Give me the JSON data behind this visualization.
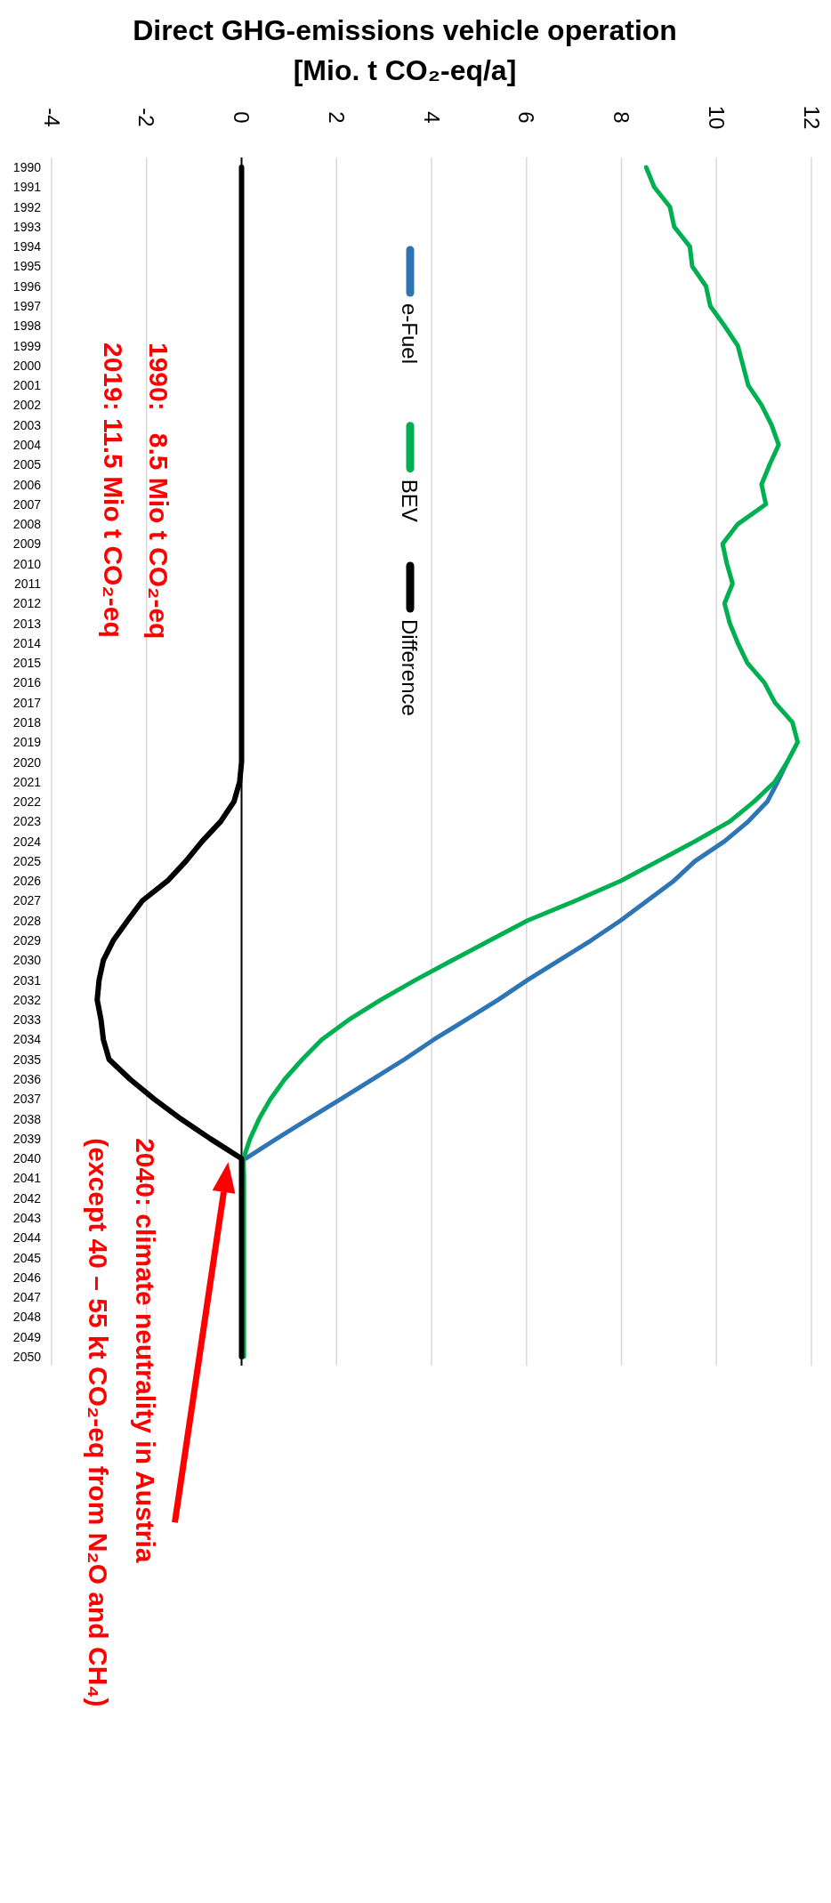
{
  "chart_data": {
    "type": "line",
    "orientation": "horizontal",
    "title": "Direct GHG-emissions vehicle operation\n[Mio. t CO₂-eq/a]",
    "categories": [
      "1990",
      "1991",
      "1992",
      "1993",
      "1994",
      "1995",
      "1996",
      "1997",
      "1998",
      "1999",
      "2000",
      "2001",
      "2002",
      "2003",
      "2004",
      "2005",
      "2006",
      "2007",
      "2008",
      "2009",
      "2010",
      "2011",
      "2012",
      "2013",
      "2014",
      "2015",
      "2016",
      "2017",
      "2018",
      "2019",
      "2020",
      "2021",
      "2022",
      "2023",
      "2024",
      "2025",
      "2026",
      "2027",
      "2028",
      "2029",
      "2030",
      "2031",
      "2032",
      "2033",
      "2034",
      "2035",
      "2036",
      "2037",
      "2038",
      "2039",
      "2040",
      "2041",
      "2042",
      "2043",
      "2044",
      "2045",
      "2046",
      "2047",
      "2048",
      "2049",
      "2050"
    ],
    "series": [
      {
        "name": "e-Fuel",
        "color": "#2e75b6",
        "values": [
          null,
          null,
          null,
          null,
          null,
          null,
          null,
          null,
          null,
          null,
          null,
          null,
          null,
          null,
          null,
          null,
          null,
          null,
          null,
          null,
          null,
          null,
          null,
          null,
          null,
          null,
          null,
          null,
          null,
          null,
          11.49,
          11.29,
          11.07,
          10.67,
          10.17,
          9.55,
          9.1,
          8.54,
          7.98,
          7.36,
          6.69,
          6.02,
          5.4,
          4.73,
          4.05,
          3.43,
          2.76,
          2.09,
          1.41,
          0.74,
          0.09,
          null,
          null,
          null,
          null,
          null,
          null,
          null,
          null,
          null,
          null
        ]
      },
      {
        "name": "BEV",
        "color": "#00b050",
        "values": [
          8.52,
          8.69,
          9.02,
          9.11,
          9.44,
          9.49,
          9.78,
          9.87,
          10.17,
          10.45,
          10.56,
          10.67,
          10.95,
          11.16,
          11.31,
          11.12,
          10.95,
          11.04,
          10.45,
          10.13,
          10.22,
          10.34,
          10.17,
          10.28,
          10.45,
          10.65,
          11.01,
          11.23,
          11.6,
          11.71,
          11.49,
          11.23,
          10.79,
          10.28,
          9.55,
          8.77,
          7.98,
          7.03,
          6.02,
          5.23,
          4.44,
          3.66,
          2.93,
          2.26,
          1.69,
          1.28,
          0.91,
          0.61,
          0.37,
          0.18,
          0.04,
          0.05,
          0.05,
          0.05,
          0.05,
          0.05,
          0.05,
          0.05,
          0.05,
          0.05,
          0.05
        ]
      },
      {
        "name": "Difference",
        "color": "#000000",
        "values": [
          0,
          0,
          0,
          0,
          0,
          0,
          0,
          0,
          0,
          0,
          0,
          0,
          0,
          0,
          0,
          0,
          0,
          0,
          0,
          0,
          0,
          0,
          0,
          0,
          0,
          0,
          0,
          0,
          0,
          0,
          0,
          -0.04,
          -0.16,
          -0.44,
          -0.83,
          -1.17,
          -1.56,
          -2.09,
          -2.4,
          -2.7,
          -2.91,
          -3,
          -3.04,
          -2.96,
          -2.91,
          -2.79,
          -2.35,
          -1.84,
          -1.28,
          -0.66,
          0,
          0,
          0,
          0,
          0,
          0,
          0,
          0,
          0,
          0,
          0
        ]
      }
    ],
    "xlim": [
      -4,
      12
    ],
    "xticks": [
      -4,
      -2,
      0,
      2,
      4,
      6,
      8,
      10,
      12
    ],
    "grid": true,
    "legend": "top",
    "marker": "none",
    "line_style": "solid",
    "annotations": [
      "1990:   8.5 Mio t CO₂-eq\n2019: 11.5 Mio t CO₂-eq",
      "2040: climate neutrality in Austria\n(except 40 – 55 kt CO₂-eq from N₂O and CH₄)"
    ]
  }
}
